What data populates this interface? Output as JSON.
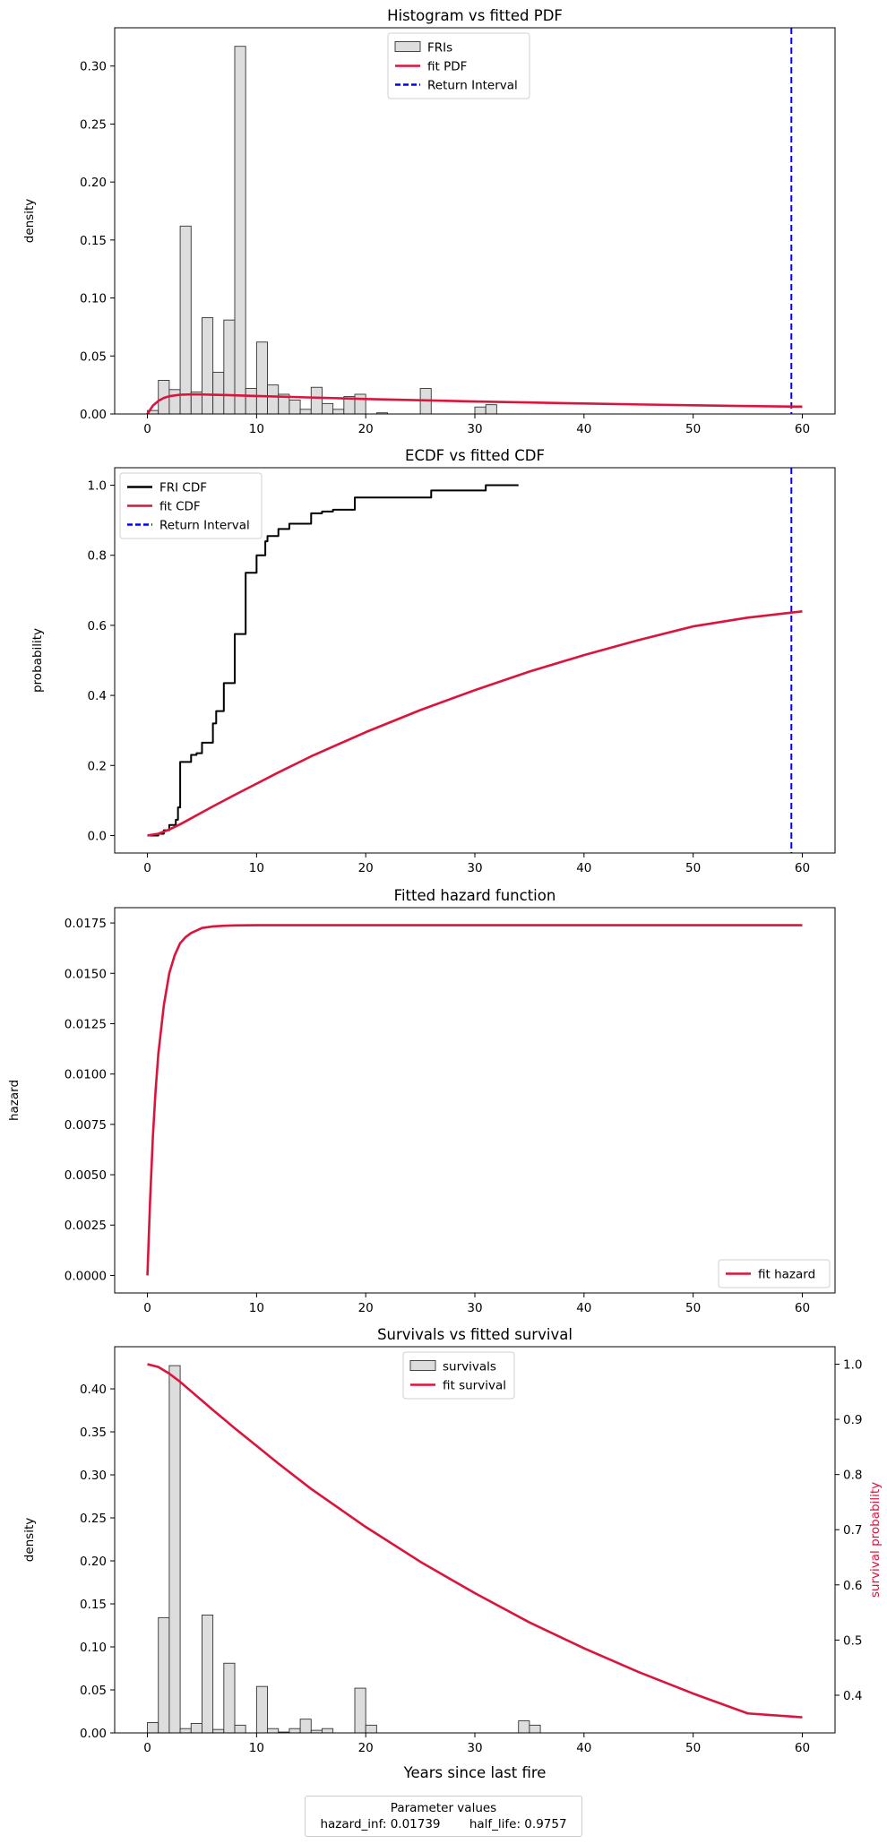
{
  "chart_data": [
    {
      "type": "bar",
      "title": "Histogram vs fitted PDF",
      "ylabel": "density",
      "xlim": [
        -3,
        63
      ],
      "ylim": [
        0,
        0.333
      ],
      "xticks": [
        0,
        10,
        20,
        30,
        40,
        50,
        60
      ],
      "yticks": [
        0.0,
        0.05,
        0.1,
        0.15,
        0.2,
        0.25,
        0.3
      ],
      "ytick_labels": [
        "0.00",
        "0.05",
        "0.10",
        "0.15",
        "0.20",
        "0.25",
        "0.30"
      ],
      "legend": {
        "location": "upper center",
        "entries": [
          "FRIs",
          "fit PDF",
          "Return Interval"
        ]
      },
      "histogram": {
        "name": "FRIs",
        "color": "#dddddd",
        "bin_width": 1.0,
        "bin_starts": [
          0,
          1,
          2,
          3,
          4,
          5,
          6,
          7,
          8,
          9,
          10,
          11,
          12,
          13,
          14,
          15,
          16,
          17,
          18,
          19,
          20,
          21,
          22,
          23,
          24,
          25,
          26,
          27,
          28,
          29,
          30,
          31
        ],
        "values": [
          0.003,
          0.029,
          0.021,
          0.162,
          0.019,
          0.083,
          0.036,
          0.081,
          0.317,
          0.022,
          0.062,
          0.025,
          0.017,
          0.012,
          0.004,
          0.023,
          0.009,
          0.004,
          0.015,
          0.017,
          0.0,
          0.001,
          0.0,
          0.0,
          0.0,
          0.022,
          0.0,
          0.0,
          0.0,
          0.0,
          0.006,
          0.008
        ]
      },
      "series": [
        {
          "name": "fit PDF",
          "color": "#dc143c",
          "x": [
            0,
            0.5,
            1,
            1.5,
            2,
            3,
            4,
            5,
            6,
            8,
            10,
            15,
            20,
            25,
            30,
            35,
            40,
            45,
            50,
            55,
            60
          ],
          "y": [
            0,
            0.0072,
            0.0112,
            0.0138,
            0.0153,
            0.0166,
            0.0169,
            0.0168,
            0.0166,
            0.0161,
            0.0155,
            0.0142,
            0.0129,
            0.0118,
            0.0108,
            0.0099,
            0.009,
            0.0082,
            0.0075,
            0.0068,
            0.0063
          ]
        }
      ],
      "vlines": [
        {
          "name": "Return Interval",
          "x": 59,
          "color": "#0000ff",
          "style": "dashed"
        }
      ]
    },
    {
      "type": "line",
      "title": "ECDF vs fitted CDF",
      "ylabel": "probability",
      "xlim": [
        -3,
        63
      ],
      "ylim": [
        -0.05,
        1.05
      ],
      "xticks": [
        0,
        10,
        20,
        30,
        40,
        50,
        60
      ],
      "yticks": [
        0.0,
        0.2,
        0.4,
        0.6,
        0.8,
        1.0
      ],
      "ytick_labels": [
        "0.0",
        "0.2",
        "0.4",
        "0.6",
        "0.8",
        "1.0"
      ],
      "legend": {
        "location": "upper left",
        "entries": [
          "FRI CDF",
          "fit CDF",
          "Return Interval"
        ]
      },
      "series": [
        {
          "name": "FRI CDF",
          "color": "#000000",
          "step": true,
          "x": [
            0,
            1,
            1.5,
            2,
            2.6,
            2.8,
            3,
            4,
            4.5,
            5,
            6,
            6.3,
            7,
            8,
            9,
            10,
            10.8,
            11,
            12,
            13,
            15,
            16,
            17,
            19,
            26,
            31,
            34
          ],
          "y": [
            0.0,
            0.005,
            0.015,
            0.03,
            0.045,
            0.08,
            0.21,
            0.23,
            0.235,
            0.265,
            0.32,
            0.355,
            0.435,
            0.575,
            0.75,
            0.8,
            0.84,
            0.855,
            0.875,
            0.89,
            0.92,
            0.925,
            0.93,
            0.965,
            0.985,
            1.0,
            1.0
          ]
        },
        {
          "name": "fit CDF",
          "color": "#dc143c",
          "x": [
            0,
            1,
            2,
            3,
            4,
            5,
            6,
            8,
            10,
            12,
            15,
            20,
            25,
            30,
            35,
            40,
            45,
            50,
            55,
            60
          ],
          "y": [
            0,
            0.005,
            0.017,
            0.032,
            0.049,
            0.066,
            0.083,
            0.116,
            0.148,
            0.18,
            0.226,
            0.295,
            0.358,
            0.415,
            0.468,
            0.515,
            0.558,
            0.597,
            0.622,
            0.64
          ]
        }
      ],
      "vlines": [
        {
          "name": "Return Interval",
          "x": 59,
          "color": "#0000ff",
          "style": "dashed"
        }
      ]
    },
    {
      "type": "line",
      "title": "Fitted hazard function",
      "ylabel": "hazard",
      "xlim": [
        -3,
        63
      ],
      "ylim": [
        -0.00087,
        0.01826
      ],
      "xticks": [
        0,
        10,
        20,
        30,
        40,
        50,
        60
      ],
      "yticks": [
        0.0,
        0.0025,
        0.005,
        0.0075,
        0.01,
        0.0125,
        0.015,
        0.0175
      ],
      "ytick_labels": [
        "0.0000",
        "0.0025",
        "0.0050",
        "0.0075",
        "0.0100",
        "0.0125",
        "0.0150",
        "0.0175"
      ],
      "legend": {
        "location": "lower right",
        "entries": [
          "fit hazard"
        ]
      },
      "series": [
        {
          "name": "fit hazard",
          "color": "#dc143c",
          "x": [
            0,
            0.25,
            0.5,
            0.75,
            1,
            1.5,
            2,
            2.5,
            3,
            3.5,
            4,
            5,
            6,
            7,
            8,
            10,
            15,
            20,
            30,
            40,
            50,
            60
          ],
          "y": [
            0,
            0.0038,
            0.0069,
            0.0092,
            0.011,
            0.0134,
            0.015,
            0.0159,
            0.0165,
            0.0168,
            0.017,
            0.01725,
            0.01733,
            0.01736,
            0.01738,
            0.01739,
            0.01739,
            0.01739,
            0.01739,
            0.01739,
            0.01739,
            0.01739
          ]
        }
      ]
    },
    {
      "type": "bar",
      "title": "Survivals vs fitted survival",
      "ylabel": "density",
      "y2label": "survival probability",
      "xlabel": "Years since last fire",
      "xlim": [
        -3,
        63
      ],
      "ylim": [
        0,
        0.449
      ],
      "y2lim": [
        0.3317,
        1.0317
      ],
      "xticks": [
        0,
        10,
        20,
        30,
        40,
        50,
        60
      ],
      "yticks": [
        0.0,
        0.05,
        0.1,
        0.15,
        0.2,
        0.25,
        0.3,
        0.35,
        0.4
      ],
      "ytick_labels": [
        "0.00",
        "0.05",
        "0.10",
        "0.15",
        "0.20",
        "0.25",
        "0.30",
        "0.35",
        "0.40"
      ],
      "y2ticks": [
        0.4,
        0.5,
        0.6,
        0.7,
        0.8,
        0.9,
        1.0
      ],
      "y2tick_labels": [
        "0.4",
        "0.5",
        "0.6",
        "0.7",
        "0.8",
        "0.9",
        "1.0"
      ],
      "legend": {
        "location": "upper center",
        "entries": [
          "survivals",
          "fit survival"
        ]
      },
      "histogram": {
        "name": "survivals",
        "color": "#dddddd",
        "bin_width": 1.0,
        "bin_starts": [
          0,
          1,
          2,
          3,
          4,
          5,
          6,
          7,
          8,
          9,
          10,
          11,
          12,
          13,
          14,
          15,
          16,
          17,
          18,
          19,
          20,
          21,
          22,
          23,
          24,
          25,
          26,
          27,
          28,
          29,
          30,
          31,
          32,
          33,
          34,
          35
        ],
        "values": [
          0.012,
          0.134,
          0.427,
          0.005,
          0.011,
          0.137,
          0.004,
          0.081,
          0.009,
          0.0,
          0.054,
          0.005,
          0.001,
          0.005,
          0.016,
          0.003,
          0.005,
          0.0,
          0.0,
          0.052,
          0.009,
          0.0,
          0.0,
          0.0,
          0.0,
          0.0,
          0.0,
          0.0,
          0.0,
          0.0,
          0.0,
          0.0,
          0.0,
          0.0,
          0.014,
          0.009
        ]
      },
      "series": [
        {
          "name": "fit survival",
          "color": "#dc143c",
          "axis": "y2",
          "x": [
            0,
            1,
            2,
            3,
            4,
            5,
            6,
            8,
            10,
            12,
            15,
            20,
            25,
            30,
            35,
            40,
            45,
            50,
            55,
            60
          ],
          "y": [
            1.0,
            0.995,
            0.983,
            0.968,
            0.951,
            0.934,
            0.917,
            0.884,
            0.852,
            0.82,
            0.774,
            0.705,
            0.642,
            0.585,
            0.532,
            0.485,
            0.442,
            0.403,
            0.367,
            0.36
          ]
        }
      ]
    }
  ],
  "params": {
    "title": "Parameter values",
    "hazard_inf": "hazard_inf: 0.01739",
    "half_life": "half_life: 0.9757"
  }
}
